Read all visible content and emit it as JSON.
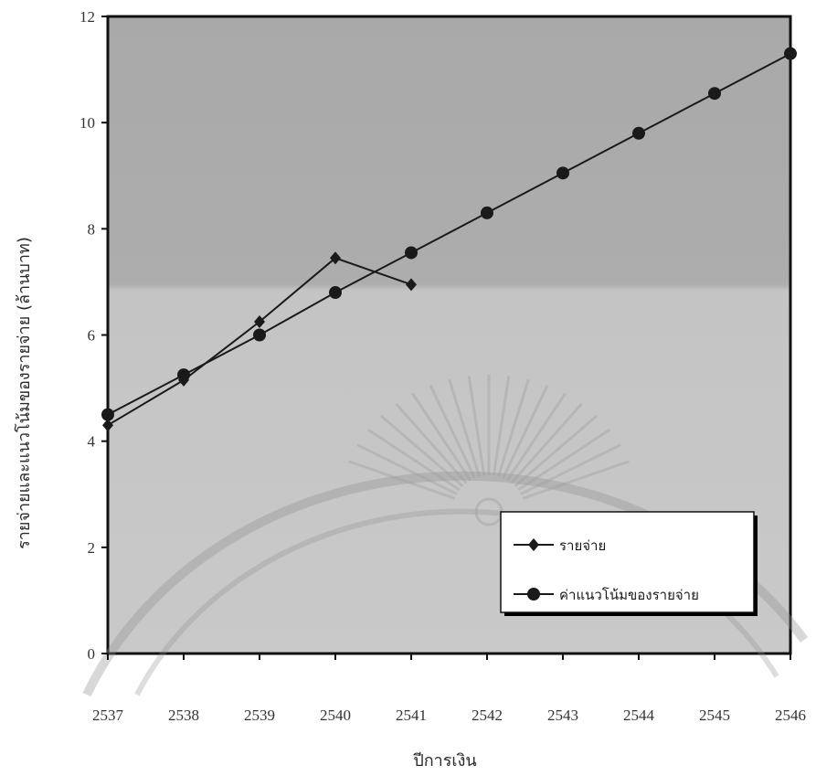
{
  "chart_data": {
    "type": "line",
    "title": "",
    "xlabel": "ปีการเงิน",
    "ylabel": "รายจ่ายและแนวโน้มของรายจ่าย (ล้านบาท)",
    "categories": [
      "2537",
      "2538",
      "2539",
      "2540",
      "2541",
      "2542",
      "2543",
      "2544",
      "2545",
      "2546"
    ],
    "ylim": [
      0,
      12
    ],
    "yticks": [
      0,
      2,
      4,
      6,
      8,
      10,
      12
    ],
    "grid": false,
    "legend_position": "lower-right",
    "series": [
      {
        "name": "รายจ่าย",
        "marker": "diamond",
        "values": [
          4.3,
          5.15,
          6.25,
          7.45,
          6.95,
          null,
          null,
          null,
          null,
          null
        ]
      },
      {
        "name": "ค่าแนวโน้มของรายจ่าย",
        "marker": "circle",
        "values": [
          4.5,
          5.25,
          6.0,
          6.8,
          7.55,
          8.3,
          9.05,
          9.8,
          10.55,
          11.3
        ]
      }
    ],
    "colors": {
      "line": "#1a1a1a",
      "plot_background": "#bdbdbd",
      "plot_background_top": "#a8a8a8",
      "frame": "#111111"
    }
  }
}
